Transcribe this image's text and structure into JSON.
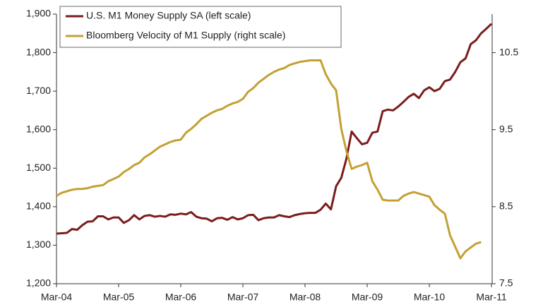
{
  "chart_data": {
    "type": "line",
    "categories": [
      "Mar-04",
      null,
      null,
      null,
      null,
      null,
      null,
      null,
      null,
      null,
      null,
      null,
      "Mar-05",
      null,
      null,
      null,
      null,
      null,
      null,
      null,
      null,
      null,
      null,
      null,
      "Mar-06",
      null,
      null,
      null,
      null,
      null,
      null,
      null,
      null,
      null,
      null,
      null,
      "Mar-07",
      null,
      null,
      null,
      null,
      null,
      null,
      null,
      null,
      null,
      null,
      null,
      "Mar-08",
      null,
      null,
      null,
      null,
      null,
      null,
      null,
      null,
      null,
      null,
      null,
      "Mar-09",
      null,
      null,
      null,
      null,
      null,
      null,
      null,
      null,
      null,
      null,
      null,
      "Mar-10",
      null,
      null,
      null,
      null,
      null,
      null,
      null,
      null,
      null,
      null,
      null,
      "Mar-11"
    ],
    "series": [
      {
        "name": "U.S. M1 Money Supply SA (left scale)",
        "color": "#7b1c1c",
        "axis": "y",
        "values": [
          1330,
          1331,
          1332,
          1342,
          1340,
          1352,
          1361,
          1362,
          1375,
          1375,
          1367,
          1372,
          1372,
          1358,
          1365,
          1378,
          1367,
          1376,
          1378,
          1374,
          1376,
          1374,
          1380,
          1379,
          1382,
          1380,
          1386,
          1374,
          1370,
          1369,
          1362,
          1370,
          1371,
          1366,
          1373,
          1367,
          1370,
          1378,
          1379,
          1365,
          1370,
          1372,
          1372,
          1378,
          1375,
          1373,
          1378,
          1381,
          1383,
          1384,
          1384,
          1392,
          1408,
          1393,
          1453,
          1475,
          1525,
          1595,
          1578,
          1562,
          1566,
          1592,
          1595,
          1648,
          1652,
          1650,
          1660,
          1672,
          1685,
          1693,
          1682,
          1702,
          1710,
          1700,
          1706,
          1726,
          1730,
          1750,
          1775,
          1785,
          1822,
          1832,
          1850,
          1862,
          1875
        ]
      },
      {
        "name": "Bloomberg Velocity of M1 Supply (right scale)",
        "color": "#c4a033",
        "axis": "y2",
        "values": [
          8.64,
          8.68,
          8.7,
          8.72,
          8.73,
          8.73,
          8.74,
          8.76,
          8.77,
          8.78,
          8.83,
          8.86,
          8.89,
          8.95,
          8.99,
          9.04,
          9.07,
          9.14,
          9.18,
          9.23,
          9.28,
          9.31,
          9.34,
          9.36,
          9.37,
          9.46,
          9.51,
          9.57,
          9.64,
          9.68,
          9.72,
          9.75,
          9.77,
          9.81,
          9.84,
          9.86,
          9.9,
          9.99,
          10.04,
          10.11,
          10.16,
          10.21,
          10.25,
          10.28,
          10.3,
          10.34,
          10.36,
          10.38,
          10.39,
          10.4,
          10.4,
          10.4,
          10.22,
          10.1,
          10.01,
          9.51,
          9.22,
          8.99,
          9.02,
          9.04,
          9.07,
          8.83,
          8.72,
          8.59,
          8.58,
          8.58,
          8.58,
          8.64,
          8.67,
          8.69,
          8.67,
          8.65,
          8.63,
          8.52,
          8.46,
          8.41,
          8.13,
          7.98,
          7.83,
          7.92,
          7.97,
          8.02,
          8.04,
          null,
          null
        ]
      }
    ],
    "ylim": [
      1200,
      1900
    ],
    "yticks": [
      {
        "value": 1200,
        "label": "1,200"
      },
      {
        "value": 1300,
        "label": "1,300"
      },
      {
        "value": 1400,
        "label": "1,400"
      },
      {
        "value": 1500,
        "label": "1,500"
      },
      {
        "value": 1600,
        "label": "1,600"
      },
      {
        "value": 1700,
        "label": "1,700"
      },
      {
        "value": 1800,
        "label": "1,800"
      },
      {
        "value": 1900,
        "label": "1,900"
      }
    ],
    "y2lim": [
      7.5,
      11
    ],
    "y2ticks": [
      7.5,
      8.5,
      9.5,
      10.5
    ],
    "legend": "top-left"
  }
}
